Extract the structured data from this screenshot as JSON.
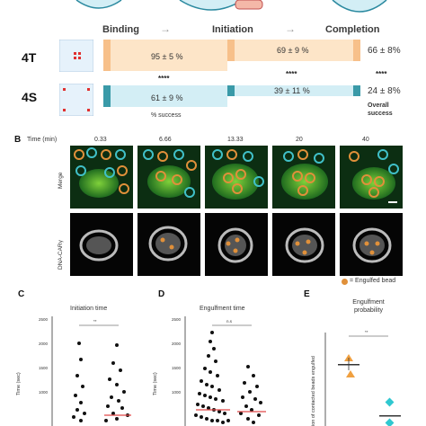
{
  "panelA": {
    "stages": [
      "Binding",
      "Initiation",
      "Completion"
    ],
    "row4T": {
      "label": "4T",
      "binding": "95 ± 5 %",
      "initiation": "69 ± 9 %",
      "completion": "66 ± 8%"
    },
    "row4S": {
      "label": "4S",
      "binding": "61 ± 9 %",
      "initiation": "39 ± 11 %",
      "completion": "24 ± 8%"
    },
    "stars": [
      "****",
      "****",
      "****"
    ],
    "pct_success": "% success",
    "overall_success": "Overall\nsuccess",
    "colors": {
      "orange": "#f7c08a",
      "orange_light": "#fde5c8",
      "teal": "#3a9aa8",
      "teal_light": "#d3eef5"
    }
  },
  "panelB": {
    "letter": "B",
    "time_label": "Time (min)",
    "times": [
      "0.33",
      "6.66",
      "13.33",
      "20",
      "40"
    ],
    "row_labels": [
      "Merge",
      "DNA-CARγ"
    ],
    "legend": "= Engulfed bead"
  },
  "panelC": {
    "letter": "C",
    "title": "Initiation time",
    "ylabel": "Time (sec)",
    "yticks": [
      "2500",
      "2000",
      "1500",
      "1000"
    ],
    "sig": "**"
  },
  "panelD": {
    "letter": "D",
    "title": "Engulfment time",
    "ylabel": "Time (sec)",
    "yticks": [
      "2500",
      "2000",
      "1500",
      "1000"
    ],
    "sig": "n.s"
  },
  "panelE": {
    "letter": "E",
    "title": "Engulfment\nprobability",
    "ylabel": "ion of contacted beads engulfed",
    "sig": "**"
  }
}
